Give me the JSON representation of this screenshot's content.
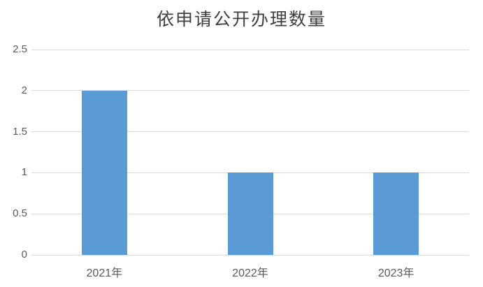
{
  "chart_data": {
    "type": "bar",
    "title": "依申请公开办理数量",
    "categories": [
      "2021年",
      "2022年",
      "2023年"
    ],
    "values": [
      2,
      1,
      1
    ],
    "xlabel": "",
    "ylabel": "",
    "ylim": [
      0,
      2.5
    ],
    "ytick_interval": 0.5,
    "ytick_labels": [
      "0",
      "0.5",
      "1",
      "1.5",
      "2",
      "2.5"
    ],
    "grid": true,
    "legend_position": "none",
    "bar_color": "#5B9BD5",
    "gridline_color": "#D9D9D9",
    "tick_label_color": "#595959",
    "title_color": "#404040",
    "background_color": "#FFFFFF"
  }
}
